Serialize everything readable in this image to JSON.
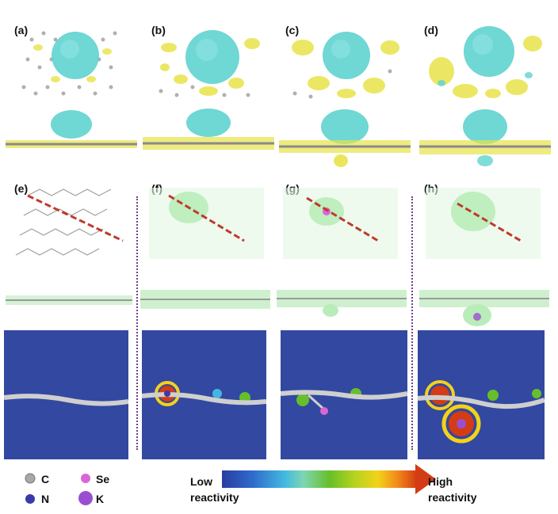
{
  "panel_labels": [
    "(a)",
    "(b)",
    "(c)",
    "(d)",
    "(e)",
    "(f)",
    "(g)",
    "(h)"
  ],
  "atom_legend": [
    {
      "symbol": "C",
      "color": "#a8a8a8"
    },
    {
      "symbol": "Se",
      "color": "#d966d6"
    },
    {
      "symbol": "N",
      "color": "#3a3aa8"
    },
    {
      "symbol": "K",
      "color": "#9a4fd0"
    }
  ],
  "colorbar": {
    "low_label_line1": "Low",
    "low_label_line2": "reactivity",
    "high_label_line1": "High",
    "high_label_line2": "reactivity"
  },
  "colors": {
    "charge_accumulation": "#e8e34a",
    "charge_depletion": "#5fd3cf",
    "electron_density": "#b9ecb9",
    "map_background": "#3348a0",
    "cut_line": "#c0392b"
  }
}
